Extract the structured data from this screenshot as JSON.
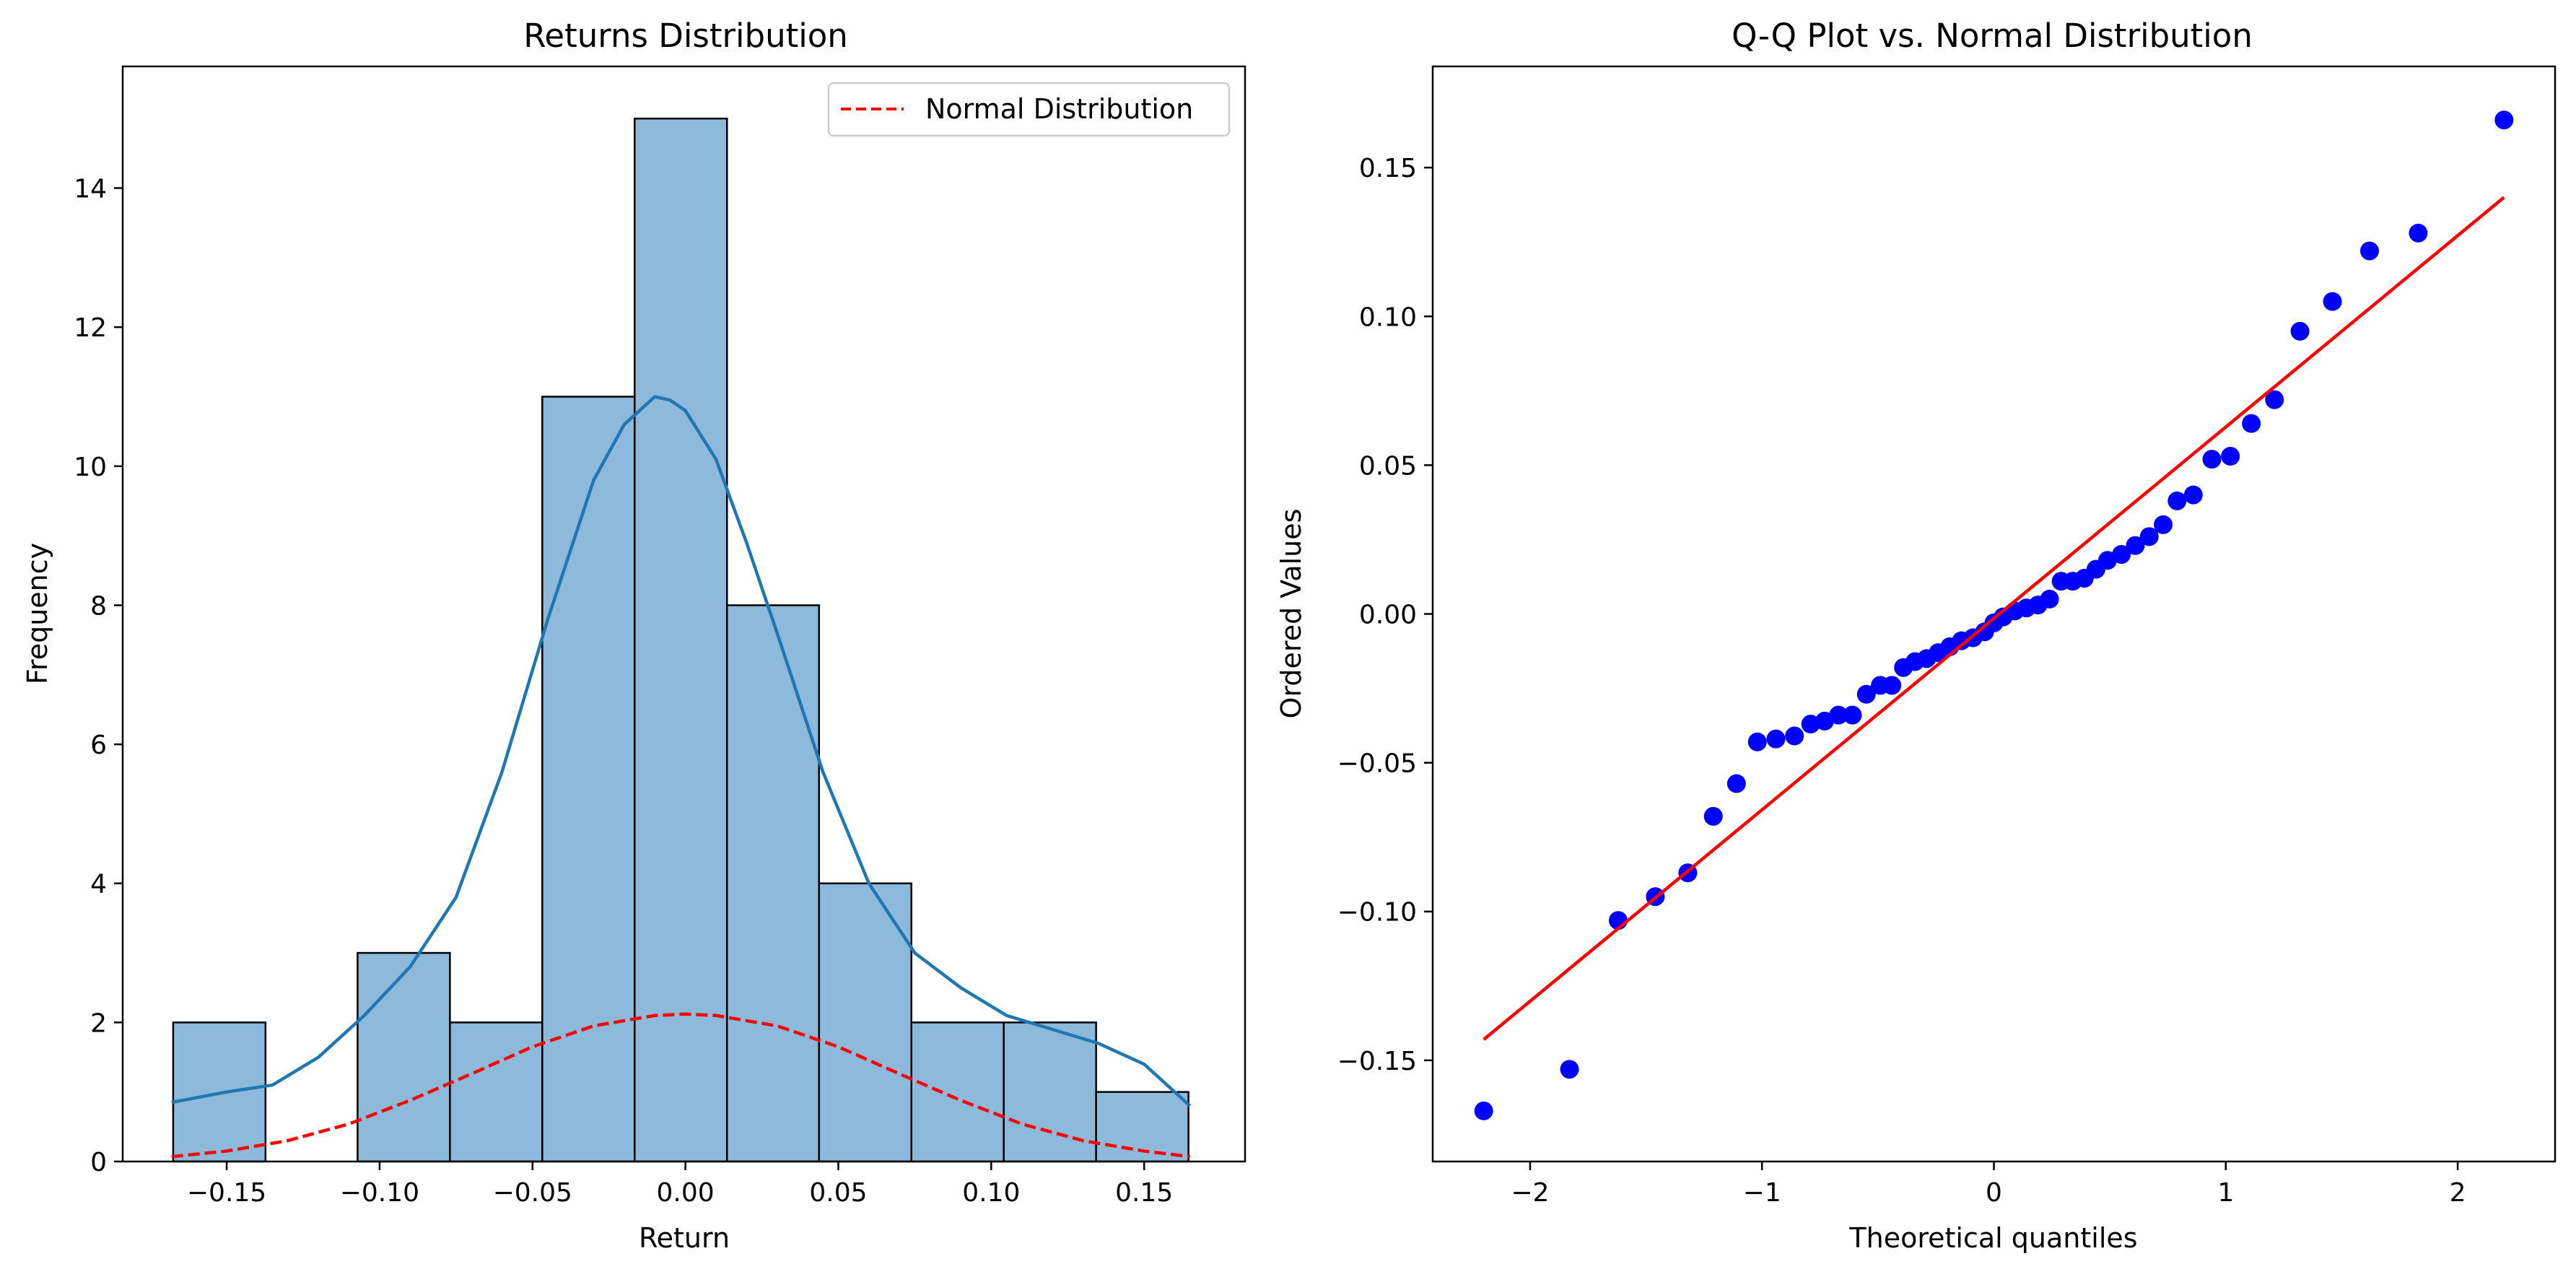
{
  "chart_data": [
    {
      "type": "bar",
      "title": "Returns Distribution",
      "xlabel": "Return",
      "ylabel": "Frequency",
      "xlim": [
        -0.184,
        0.183
      ],
      "ylim": [
        0,
        15.75
      ],
      "xticks": [
        -0.15,
        -0.1,
        -0.05,
        0.0,
        0.05,
        0.1,
        0.15
      ],
      "xtick_labels": [
        "−0.15",
        "−0.10",
        "−0.05",
        "0.00",
        "0.05",
        "0.10",
        "0.15"
      ],
      "yticks": [
        0,
        2,
        4,
        6,
        8,
        10,
        12,
        14
      ],
      "ytick_labels": [
        "0",
        "2",
        "4",
        "6",
        "8",
        "10",
        "12",
        "14"
      ],
      "grid": false,
      "legend_position": "top-right",
      "hist_color": "#8db9da",
      "kde_color": "#1f77b4",
      "normal_color": "#ff0000",
      "bins": [
        {
          "x0": -0.1675,
          "x1": -0.1373,
          "count": 2
        },
        {
          "x0": -0.1373,
          "x1": -0.1072,
          "count": 0
        },
        {
          "x0": -0.1072,
          "x1": -0.077,
          "count": 3
        },
        {
          "x0": -0.077,
          "x1": -0.0468,
          "count": 2
        },
        {
          "x0": -0.0468,
          "x1": -0.0166,
          "count": 11
        },
        {
          "x0": -0.0166,
          "x1": 0.0136,
          "count": 15
        },
        {
          "x0": 0.0136,
          "x1": 0.0437,
          "count": 8
        },
        {
          "x0": 0.0437,
          "x1": 0.0739,
          "count": 4
        },
        {
          "x0": 0.0739,
          "x1": 0.1041,
          "count": 2
        },
        {
          "x0": 0.1041,
          "x1": 0.1343,
          "count": 2
        },
        {
          "x0": 0.1343,
          "x1": 0.1645,
          "count": 1
        }
      ],
      "series": [
        {
          "kind": "kde",
          "x": [
            -0.168,
            -0.15,
            -0.135,
            -0.12,
            -0.105,
            -0.09,
            -0.075,
            -0.06,
            -0.045,
            -0.03,
            -0.02,
            -0.01,
            -0.005,
            0.0,
            0.01,
            0.02,
            0.03,
            0.045,
            0.06,
            0.075,
            0.09,
            0.105,
            0.12,
            0.135,
            0.15,
            0.165
          ],
          "y": [
            0.85,
            1.0,
            1.1,
            1.5,
            2.1,
            2.8,
            3.8,
            5.6,
            7.8,
            9.8,
            10.6,
            11.0,
            10.95,
            10.8,
            10.1,
            8.9,
            7.6,
            5.6,
            4.0,
            3.0,
            2.5,
            2.1,
            1.9,
            1.7,
            1.4,
            0.8
          ]
        },
        {
          "kind": "normal",
          "name": "Normal Distribution",
          "x": [
            -0.168,
            -0.15,
            -0.13,
            -0.11,
            -0.09,
            -0.07,
            -0.05,
            -0.03,
            -0.01,
            0.0,
            0.01,
            0.03,
            0.05,
            0.07,
            0.09,
            0.11,
            0.13,
            0.15,
            0.165
          ],
          "y": [
            0.07,
            0.15,
            0.3,
            0.54,
            0.88,
            1.26,
            1.65,
            1.95,
            2.1,
            2.12,
            2.1,
            1.95,
            1.65,
            1.26,
            0.88,
            0.54,
            0.3,
            0.15,
            0.07
          ]
        }
      ]
    },
    {
      "type": "scatter",
      "title": "Q-Q Plot vs. Normal Distribution",
      "xlabel": "Theoretical quantiles",
      "ylabel": "Ordered Values",
      "xlim": [
        -2.42,
        2.42
      ],
      "ylim": [
        -0.184,
        0.184
      ],
      "xticks": [
        -2,
        -1,
        0,
        1,
        2
      ],
      "xtick_labels": [
        "−2",
        "−1",
        "0",
        "1",
        "2"
      ],
      "yticks": [
        -0.15,
        -0.1,
        -0.05,
        0.0,
        0.05,
        0.1,
        0.15
      ],
      "ytick_labels": [
        "−0.15",
        "−0.10",
        "−0.05",
        "0.00",
        "0.05",
        "0.10",
        "0.15"
      ],
      "grid": false,
      "point_color": "#0000ff",
      "line_color": "#ff0000",
      "fit_line": {
        "x": [
          -2.2,
          2.2
        ],
        "y": [
          -0.143,
          0.14
        ]
      },
      "points": {
        "x": [
          -2.2,
          -1.83,
          -1.62,
          -1.46,
          -1.32,
          -1.21,
          -1.11,
          -1.02,
          -0.94,
          -0.86,
          -0.79,
          -0.73,
          -0.67,
          -0.61,
          -0.55,
          -0.49,
          -0.44,
          -0.39,
          -0.34,
          -0.29,
          -0.24,
          -0.19,
          -0.14,
          -0.09,
          -0.04,
          0.0,
          0.04,
          0.09,
          0.14,
          0.19,
          0.24,
          0.29,
          0.34,
          0.39,
          0.44,
          0.49,
          0.55,
          0.61,
          0.67,
          0.73,
          0.79,
          0.86,
          0.94,
          1.02,
          1.11,
          1.21,
          1.32,
          1.46,
          1.62,
          1.83,
          2.2
        ],
        "y": [
          -0.167,
          -0.153,
          -0.103,
          -0.095,
          -0.087,
          -0.068,
          -0.057,
          -0.043,
          -0.042,
          -0.041,
          -0.037,
          -0.036,
          -0.034,
          -0.034,
          -0.027,
          -0.024,
          -0.024,
          -0.018,
          -0.016,
          -0.015,
          -0.013,
          -0.011,
          -0.009,
          -0.008,
          -0.006,
          -0.003,
          -0.001,
          0.001,
          0.002,
          0.003,
          0.005,
          0.011,
          0.011,
          0.012,
          0.015,
          0.018,
          0.02,
          0.023,
          0.026,
          0.03,
          0.038,
          0.04,
          0.052,
          0.053,
          0.064,
          0.072,
          0.095,
          0.105,
          0.122,
          0.128,
          0.166
        ]
      }
    }
  ]
}
